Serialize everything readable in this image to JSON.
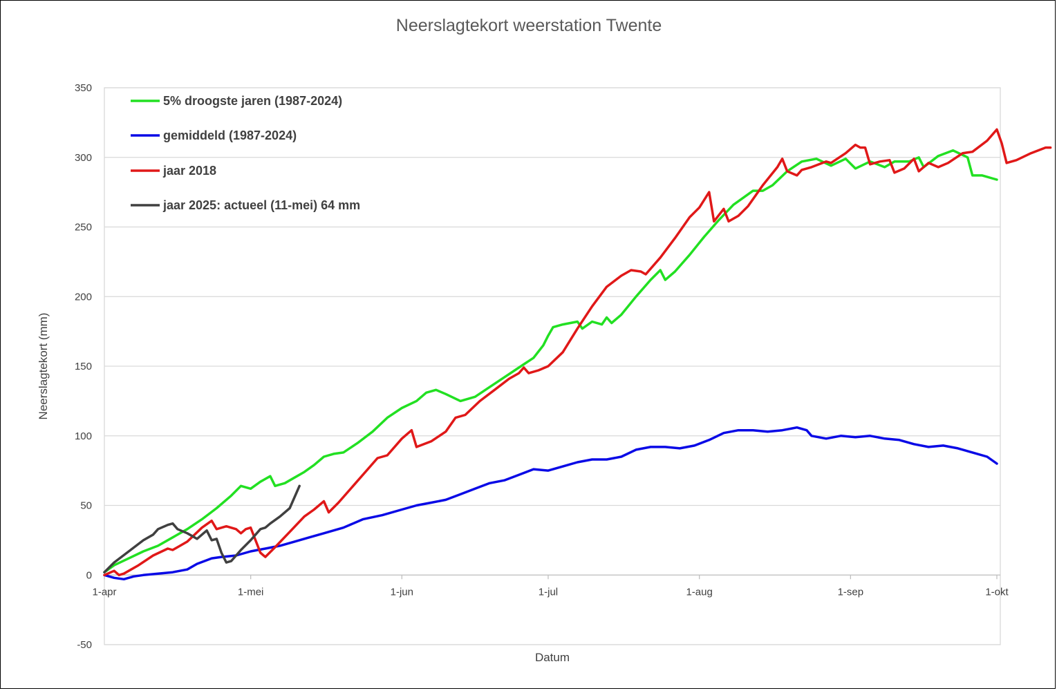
{
  "chart_data": {
    "type": "line",
    "title": "Neerslagtekort weerstation Twente",
    "xlabel": "Datum",
    "ylabel": "Neerslagtekort (mm)",
    "ylim": [
      -50,
      350
    ],
    "yticks": [
      "-50",
      "0",
      "50",
      "100",
      "150",
      "200",
      "250",
      "300",
      "350"
    ],
    "xticks": [
      "1-apr",
      "1-mei",
      "1-jun",
      "1-jul",
      "1-aug",
      "1-sep",
      "1-okt"
    ],
    "grid": true,
    "legend_position": "top-left inside plot",
    "series": [
      {
        "name": "5% droogste jaren (1987-2024)",
        "color": "#22e022",
        "points": [
          [
            "1-apr",
            2
          ],
          [
            "3-apr",
            7
          ],
          [
            "6-apr",
            12
          ],
          [
            "9-apr",
            17
          ],
          [
            "12-apr",
            21
          ],
          [
            "15-apr",
            27
          ],
          [
            "18-apr",
            33
          ],
          [
            "21-apr",
            40
          ],
          [
            "24-apr",
            48
          ],
          [
            "27-apr",
            57
          ],
          [
            "29-apr",
            64
          ],
          [
            "1-mei",
            62
          ],
          [
            "3-mei",
            67
          ],
          [
            "5-mei",
            71
          ],
          [
            "6-mei",
            64
          ],
          [
            "8-mei",
            66
          ],
          [
            "10-mei",
            70
          ],
          [
            "12-mei",
            74
          ],
          [
            "14-mei",
            79
          ],
          [
            "16-mei",
            85
          ],
          [
            "18-mei",
            87
          ],
          [
            "20-mei",
            88
          ],
          [
            "23-mei",
            95
          ],
          [
            "26-mei",
            103
          ],
          [
            "29-mei",
            113
          ],
          [
            "1-jun",
            120
          ],
          [
            "4-jun",
            125
          ],
          [
            "6-jun",
            131
          ],
          [
            "8-jun",
            133
          ],
          [
            "10-jun",
            130
          ],
          [
            "13-jun",
            125
          ],
          [
            "16-jun",
            128
          ],
          [
            "19-jun",
            135
          ],
          [
            "22-jun",
            142
          ],
          [
            "25-jun",
            149
          ],
          [
            "28-jun",
            156
          ],
          [
            "30-jun",
            165
          ],
          [
            "1-jul",
            172
          ],
          [
            "2-jul",
            178
          ],
          [
            "4-jul",
            180
          ],
          [
            "7-jul",
            182
          ],
          [
            "8-jul",
            177
          ],
          [
            "10-jul",
            182
          ],
          [
            "12-jul",
            180
          ],
          [
            "13-jul",
            185
          ],
          [
            "14-jul",
            181
          ],
          [
            "16-jul",
            187
          ],
          [
            "19-jul",
            200
          ],
          [
            "22-jul",
            212
          ],
          [
            "24-jul",
            219
          ],
          [
            "25-jul",
            212
          ],
          [
            "27-jul",
            218
          ],
          [
            "30-jul",
            230
          ],
          [
            "2-aug",
            243
          ],
          [
            "5-aug",
            255
          ],
          [
            "8-aug",
            266
          ],
          [
            "10-aug",
            271
          ],
          [
            "12-aug",
            276
          ],
          [
            "14-aug",
            276
          ],
          [
            "16-aug",
            280
          ],
          [
            "19-aug",
            290
          ],
          [
            "22-aug",
            297
          ],
          [
            "25-aug",
            299
          ],
          [
            "28-aug",
            294
          ],
          [
            "31-aug",
            299
          ],
          [
            "2-sep",
            292
          ],
          [
            "5-sep",
            297
          ],
          [
            "8-sep",
            293
          ],
          [
            "10-sep",
            297
          ],
          [
            "13-sep",
            297
          ],
          [
            "15-sep",
            300
          ],
          [
            "16-sep",
            293
          ],
          [
            "19-sep",
            301
          ],
          [
            "22-sep",
            305
          ],
          [
            "25-sep",
            300
          ],
          [
            "26-sep",
            287
          ],
          [
            "28-sep",
            287
          ],
          [
            "30-sep",
            285
          ],
          [
            "1-okt",
            284
          ]
        ]
      },
      {
        "name": "gemiddeld (1987-2024)",
        "color": "#0a0ae6",
        "points": [
          [
            "1-apr",
            0
          ],
          [
            "3-apr",
            -2
          ],
          [
            "5-apr",
            -3
          ],
          [
            "7-apr",
            -1
          ],
          [
            "9-apr",
            0
          ],
          [
            "12-apr",
            1
          ],
          [
            "15-apr",
            2
          ],
          [
            "18-apr",
            4
          ],
          [
            "20-apr",
            8
          ],
          [
            "23-apr",
            12
          ],
          [
            "25-apr",
            13
          ],
          [
            "28-apr",
            14
          ],
          [
            "1-mei",
            17
          ],
          [
            "4-mei",
            19
          ],
          [
            "7-mei",
            21
          ],
          [
            "10-mei",
            24
          ],
          [
            "13-mei",
            27
          ],
          [
            "16-mei",
            30
          ],
          [
            "20-mei",
            34
          ],
          [
            "24-mei",
            40
          ],
          [
            "28-mei",
            43
          ],
          [
            "1-jun",
            47
          ],
          [
            "4-jun",
            50
          ],
          [
            "7-jun",
            52
          ],
          [
            "10-jun",
            54
          ],
          [
            "13-jun",
            58
          ],
          [
            "16-jun",
            62
          ],
          [
            "19-jun",
            66
          ],
          [
            "22-jun",
            68
          ],
          [
            "25-jun",
            72
          ],
          [
            "28-jun",
            76
          ],
          [
            "1-jul",
            75
          ],
          [
            "4-jul",
            78
          ],
          [
            "7-jul",
            81
          ],
          [
            "10-jul",
            83
          ],
          [
            "13-jul",
            83
          ],
          [
            "16-jul",
            85
          ],
          [
            "19-jul",
            90
          ],
          [
            "22-jul",
            92
          ],
          [
            "25-jul",
            92
          ],
          [
            "28-jul",
            91
          ],
          [
            "31-jul",
            93
          ],
          [
            "3-aug",
            97
          ],
          [
            "6-aug",
            102
          ],
          [
            "9-aug",
            104
          ],
          [
            "12-aug",
            104
          ],
          [
            "15-aug",
            103
          ],
          [
            "18-aug",
            104
          ],
          [
            "21-aug",
            106
          ],
          [
            "23-aug",
            104
          ],
          [
            "24-aug",
            100
          ],
          [
            "27-aug",
            98
          ],
          [
            "30-aug",
            100
          ],
          [
            "2-sep",
            99
          ],
          [
            "5-sep",
            100
          ],
          [
            "8-sep",
            98
          ],
          [
            "11-sep",
            97
          ],
          [
            "14-sep",
            94
          ],
          [
            "17-sep",
            92
          ],
          [
            "20-sep",
            93
          ],
          [
            "23-sep",
            91
          ],
          [
            "26-sep",
            88
          ],
          [
            "29-sep",
            85
          ],
          [
            "1-okt",
            80
          ]
        ]
      },
      {
        "name": "jaar 2018",
        "color": "#e01818",
        "points": [
          [
            "1-apr",
            0
          ],
          [
            "3-apr",
            3
          ],
          [
            "4-apr",
            0
          ],
          [
            "5-apr",
            1
          ],
          [
            "8-apr",
            7
          ],
          [
            "11-apr",
            14
          ],
          [
            "14-apr",
            19
          ],
          [
            "15-apr",
            18
          ],
          [
            "18-apr",
            24
          ],
          [
            "21-apr",
            34
          ],
          [
            "23-apr",
            39
          ],
          [
            "24-apr",
            33
          ],
          [
            "26-apr",
            35
          ],
          [
            "28-apr",
            33
          ],
          [
            "29-apr",
            30
          ],
          [
            "30-apr",
            33
          ],
          [
            "1-mei",
            34
          ],
          [
            "3-mei",
            16
          ],
          [
            "4-mei",
            13
          ],
          [
            "6-mei",
            20
          ],
          [
            "9-mei",
            31
          ],
          [
            "12-mei",
            42
          ],
          [
            "14-mei",
            47
          ],
          [
            "16-mei",
            53
          ],
          [
            "17-mei",
            45
          ],
          [
            "19-mei",
            52
          ],
          [
            "22-mei",
            64
          ],
          [
            "25-mei",
            76
          ],
          [
            "27-mei",
            84
          ],
          [
            "29-mei",
            86
          ],
          [
            "1-jun",
            98
          ],
          [
            "3-jun",
            104
          ],
          [
            "4-jun",
            92
          ],
          [
            "7-jun",
            96
          ],
          [
            "10-jun",
            103
          ],
          [
            "12-jun",
            113
          ],
          [
            "14-jun",
            115
          ],
          [
            "17-jun",
            125
          ],
          [
            "20-jun",
            133
          ],
          [
            "23-jun",
            141
          ],
          [
            "25-jun",
            145
          ],
          [
            "26-jun",
            149
          ],
          [
            "27-jun",
            145
          ],
          [
            "29-jun",
            147
          ],
          [
            "1-jul",
            150
          ],
          [
            "4-jul",
            160
          ],
          [
            "7-jul",
            177
          ],
          [
            "10-jul",
            193
          ],
          [
            "13-jul",
            207
          ],
          [
            "16-jul",
            215
          ],
          [
            "18-jul",
            219
          ],
          [
            "20-jul",
            218
          ],
          [
            "21-jul",
            216
          ],
          [
            "24-jul",
            228
          ],
          [
            "27-jul",
            242
          ],
          [
            "30-jul",
            257
          ],
          [
            "1-aug",
            264
          ],
          [
            "3-aug",
            275
          ],
          [
            "4-aug",
            254
          ],
          [
            "6-aug",
            263
          ],
          [
            "7-aug",
            254
          ],
          [
            "9-aug",
            258
          ],
          [
            "11-aug",
            265
          ],
          [
            "14-aug",
            280
          ],
          [
            "17-aug",
            293
          ],
          [
            "18-aug",
            299
          ],
          [
            "19-aug",
            290
          ],
          [
            "21-aug",
            287
          ],
          [
            "22-aug",
            291
          ],
          [
            "24-aug",
            293
          ],
          [
            "27-aug",
            297
          ],
          [
            "28-aug",
            296
          ],
          [
            "31-aug",
            303
          ],
          [
            "2-sep",
            309
          ],
          [
            "3-sep",
            307
          ],
          [
            "4-sep",
            307
          ],
          [
            "5-sep",
            295
          ],
          [
            "7-sep",
            297
          ],
          [
            "9-sep",
            298
          ],
          [
            "10-sep",
            289
          ],
          [
            "12-sep",
            292
          ],
          [
            "14-sep",
            299
          ],
          [
            "15-sep",
            290
          ],
          [
            "17-sep",
            296
          ],
          [
            "19-sep",
            293
          ],
          [
            "21-sep",
            296
          ],
          [
            "24-sep",
            303
          ],
          [
            "26-sep",
            304
          ],
          [
            "29-sep",
            312
          ],
          [
            "1-okt",
            320
          ],
          [
            "2-okt",
            310
          ],
          [
            "3-okt",
            296
          ],
          [
            "5-okt",
            298
          ],
          [
            "8-okt",
            303
          ],
          [
            "11-okt",
            307
          ],
          [
            "12-okt",
            307
          ]
        ]
      },
      {
        "name": "jaar 2025: actueel (11-mei) 64 mm",
        "color": "#404040",
        "points": [
          [
            "1-apr",
            2
          ],
          [
            "3-apr",
            9
          ],
          [
            "6-apr",
            17
          ],
          [
            "9-apr",
            25
          ],
          [
            "11-apr",
            29
          ],
          [
            "12-apr",
            33
          ],
          [
            "14-apr",
            36
          ],
          [
            "15-apr",
            37
          ],
          [
            "16-apr",
            33
          ],
          [
            "18-apr",
            30
          ],
          [
            "19-apr",
            28
          ],
          [
            "20-apr",
            26
          ],
          [
            "21-apr",
            29
          ],
          [
            "22-apr",
            32
          ],
          [
            "23-apr",
            25
          ],
          [
            "24-apr",
            26
          ],
          [
            "25-apr",
            16
          ],
          [
            "26-apr",
            9
          ],
          [
            "27-apr",
            10
          ],
          [
            "29-apr",
            18
          ],
          [
            "1-mei",
            25
          ],
          [
            "3-mei",
            33
          ],
          [
            "4-mei",
            34
          ],
          [
            "5-mei",
            37
          ],
          [
            "7-mei",
            42
          ],
          [
            "9-mei",
            48
          ],
          [
            "11-mei",
            64
          ]
        ]
      }
    ]
  }
}
